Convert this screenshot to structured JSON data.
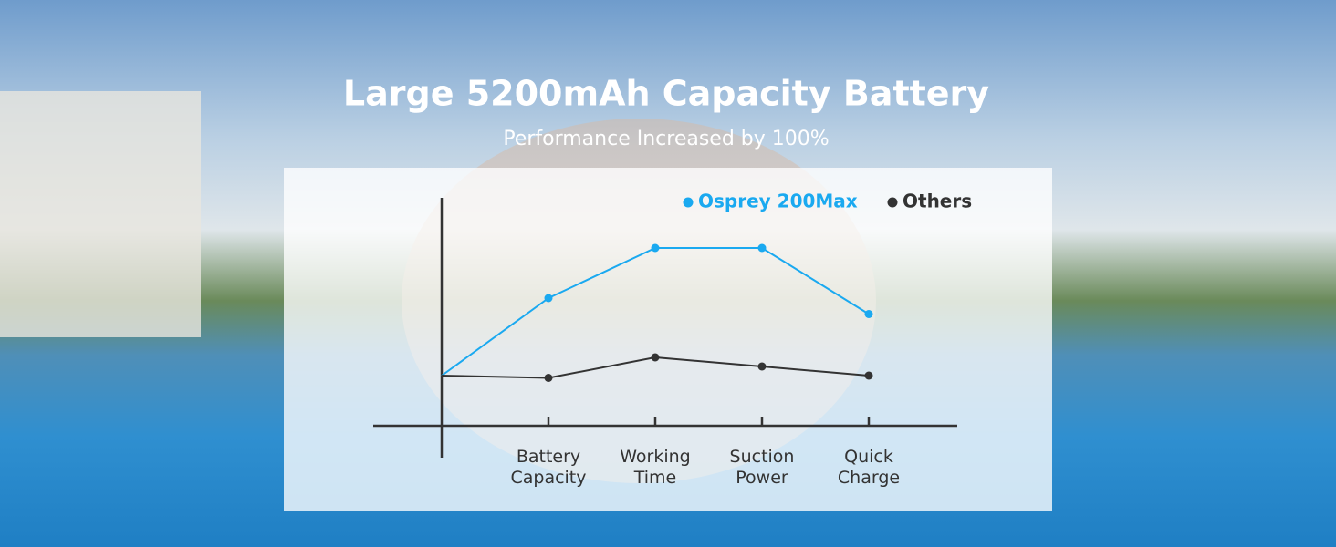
{
  "chart_data": {
    "type": "line",
    "title": "Large 5200mAh Capacity Battery",
    "subtitle": "Performance Increased by 100%",
    "categories": [
      null,
      "Battery Capacity",
      "Working Time",
      "Suction Power",
      "Quick Charge"
    ],
    "series": [
      {
        "name": "Osprey 200Max",
        "color": "#1aa9f0",
        "values": [
          22,
          56,
          78,
          78,
          49
        ]
      },
      {
        "name": "Others",
        "color": "#333333",
        "values": [
          22,
          21,
          30,
          26,
          22
        ]
      }
    ],
    "ylim": [
      0,
      100
    ]
  }
}
